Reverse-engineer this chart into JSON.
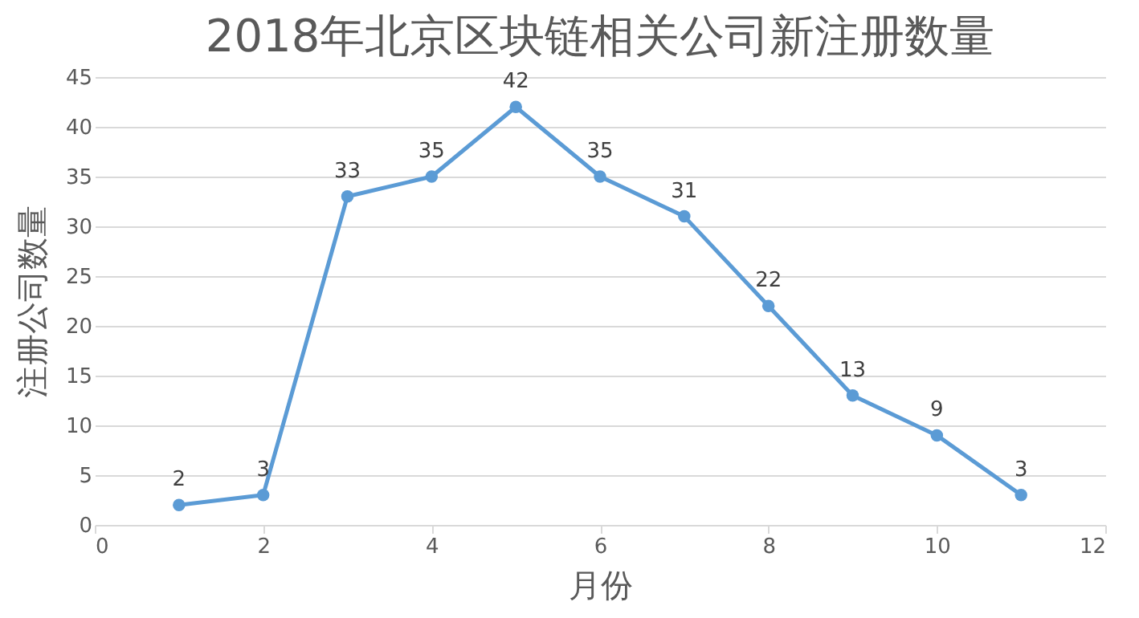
{
  "chart_data": {
    "type": "line",
    "title": "2018年北京区块链相关公司新注册数量",
    "xlabel": "月份",
    "ylabel": "注册公司数量",
    "x": [
      1,
      2,
      3,
      4,
      5,
      6,
      7,
      8,
      9,
      10,
      11
    ],
    "series": [
      {
        "color": "#5b9bd5",
        "values": [
          2,
          3,
          33,
          35,
          42,
          35,
          31,
          22,
          13,
          9,
          3
        ]
      }
    ],
    "xlim": [
      0,
      12
    ],
    "xticks": [
      0,
      2,
      4,
      6,
      8,
      10,
      12
    ],
    "ylim": [
      0,
      45
    ],
    "yticks": [
      0,
      5,
      10,
      15,
      20,
      25,
      30,
      35,
      40,
      45
    ],
    "grid": "y",
    "marker": "circle",
    "line_style": "solid",
    "data_labels": true
  }
}
